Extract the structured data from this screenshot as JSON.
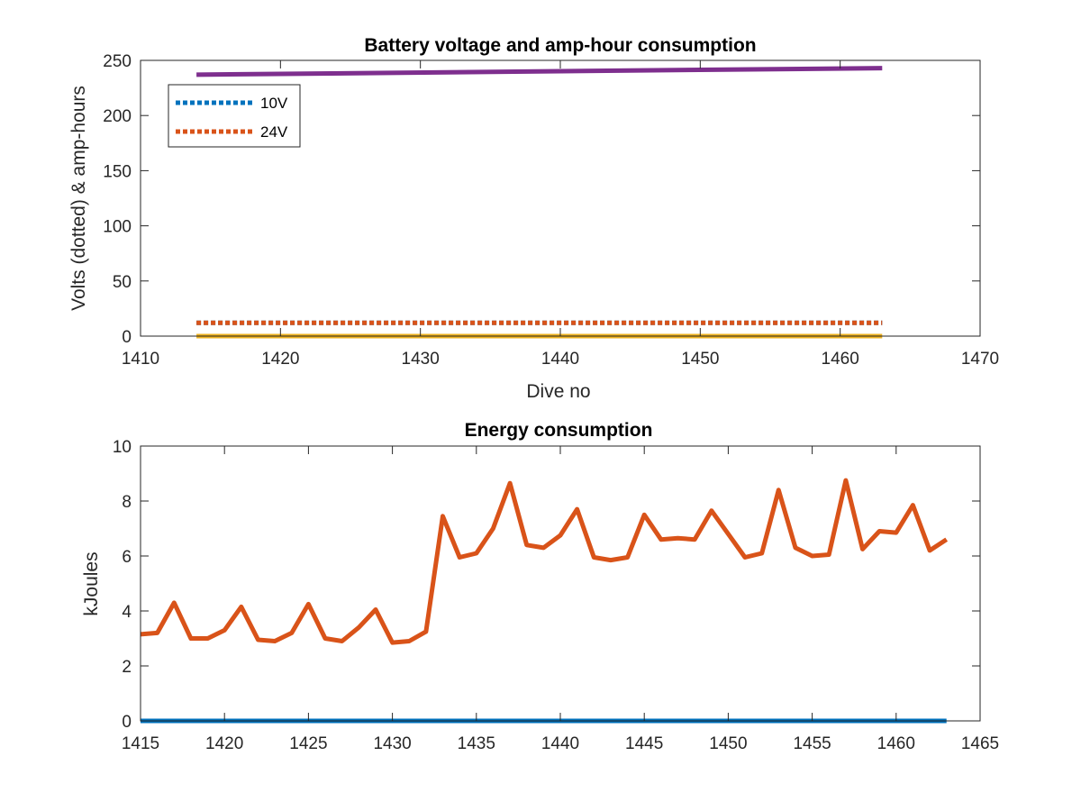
{
  "chart_data": [
    {
      "type": "line",
      "title": "Battery voltage and amp-hour consumption",
      "xlabel": "Dive no",
      "ylabel": "Volts (dotted) & amp-hours",
      "xlim": [
        1410,
        1470
      ],
      "ylim": [
        0,
        250
      ],
      "xticks": [
        1410,
        1420,
        1430,
        1440,
        1450,
        1460,
        1470
      ],
      "yticks": [
        0,
        50,
        100,
        150,
        200,
        250
      ],
      "grid": false,
      "legend": {
        "placement": "top-left",
        "entries": [
          "10V",
          "24V"
        ]
      },
      "series": [
        {
          "name": "10V",
          "style": "dotted",
          "color": "#0072BD",
          "x": [
            1414,
            1463
          ],
          "y": [
            12,
            12
          ]
        },
        {
          "name": "24V",
          "style": "dotted",
          "color": "#D95319",
          "x": [
            1414,
            1463
          ],
          "y": [
            12,
            12
          ]
        },
        {
          "style": "solid",
          "color": "#EDB120",
          "x": [
            1414,
            1463
          ],
          "y": [
            0,
            0
          ]
        },
        {
          "style": "solid",
          "color": "#7E2F8E",
          "x": [
            1414,
            1463
          ],
          "y": [
            237,
            243
          ]
        }
      ]
    },
    {
      "type": "line",
      "title": "Energy consumption",
      "xlabel": "",
      "ylabel": "kJoules",
      "xlim": [
        1415,
        1465
      ],
      "ylim": [
        0,
        10
      ],
      "xticks": [
        1415,
        1420,
        1425,
        1430,
        1435,
        1440,
        1445,
        1450,
        1455,
        1460,
        1465
      ],
      "yticks": [
        0,
        2,
        4,
        6,
        8,
        10
      ],
      "grid": false,
      "series": [
        {
          "style": "solid",
          "color": "#0072BD",
          "x": [
            1415,
            1463
          ],
          "y": [
            0,
            0
          ]
        },
        {
          "style": "solid",
          "color": "#D95319",
          "x": [
            1415,
            1416,
            1417,
            1418,
            1419,
            1420,
            1421,
            1422,
            1423,
            1424,
            1425,
            1426,
            1427,
            1428,
            1429,
            1430,
            1431,
            1432,
            1433,
            1434,
            1435,
            1436,
            1437,
            1438,
            1439,
            1440,
            1441,
            1442,
            1443,
            1444,
            1445,
            1446,
            1447,
            1448,
            1449,
            1450,
            1451,
            1452,
            1453,
            1454,
            1455,
            1456,
            1457,
            1458,
            1459,
            1460,
            1461,
            1462,
            1463
          ],
          "y": [
            3.15,
            3.2,
            4.3,
            3.0,
            3.0,
            3.3,
            4.15,
            2.95,
            2.9,
            3.2,
            4.25,
            3.0,
            2.9,
            3.4,
            4.05,
            2.85,
            2.9,
            3.25,
            7.45,
            5.95,
            6.1,
            7.0,
            8.65,
            6.4,
            6.3,
            6.75,
            7.7,
            5.95,
            5.85,
            5.95,
            7.5,
            6.6,
            6.65,
            6.6,
            7.65,
            6.8,
            5.95,
            6.1,
            8.4,
            6.3,
            6.0,
            6.05,
            8.75,
            6.25,
            6.9,
            6.85,
            7.85,
            6.2,
            6.6
          ]
        }
      ]
    }
  ]
}
